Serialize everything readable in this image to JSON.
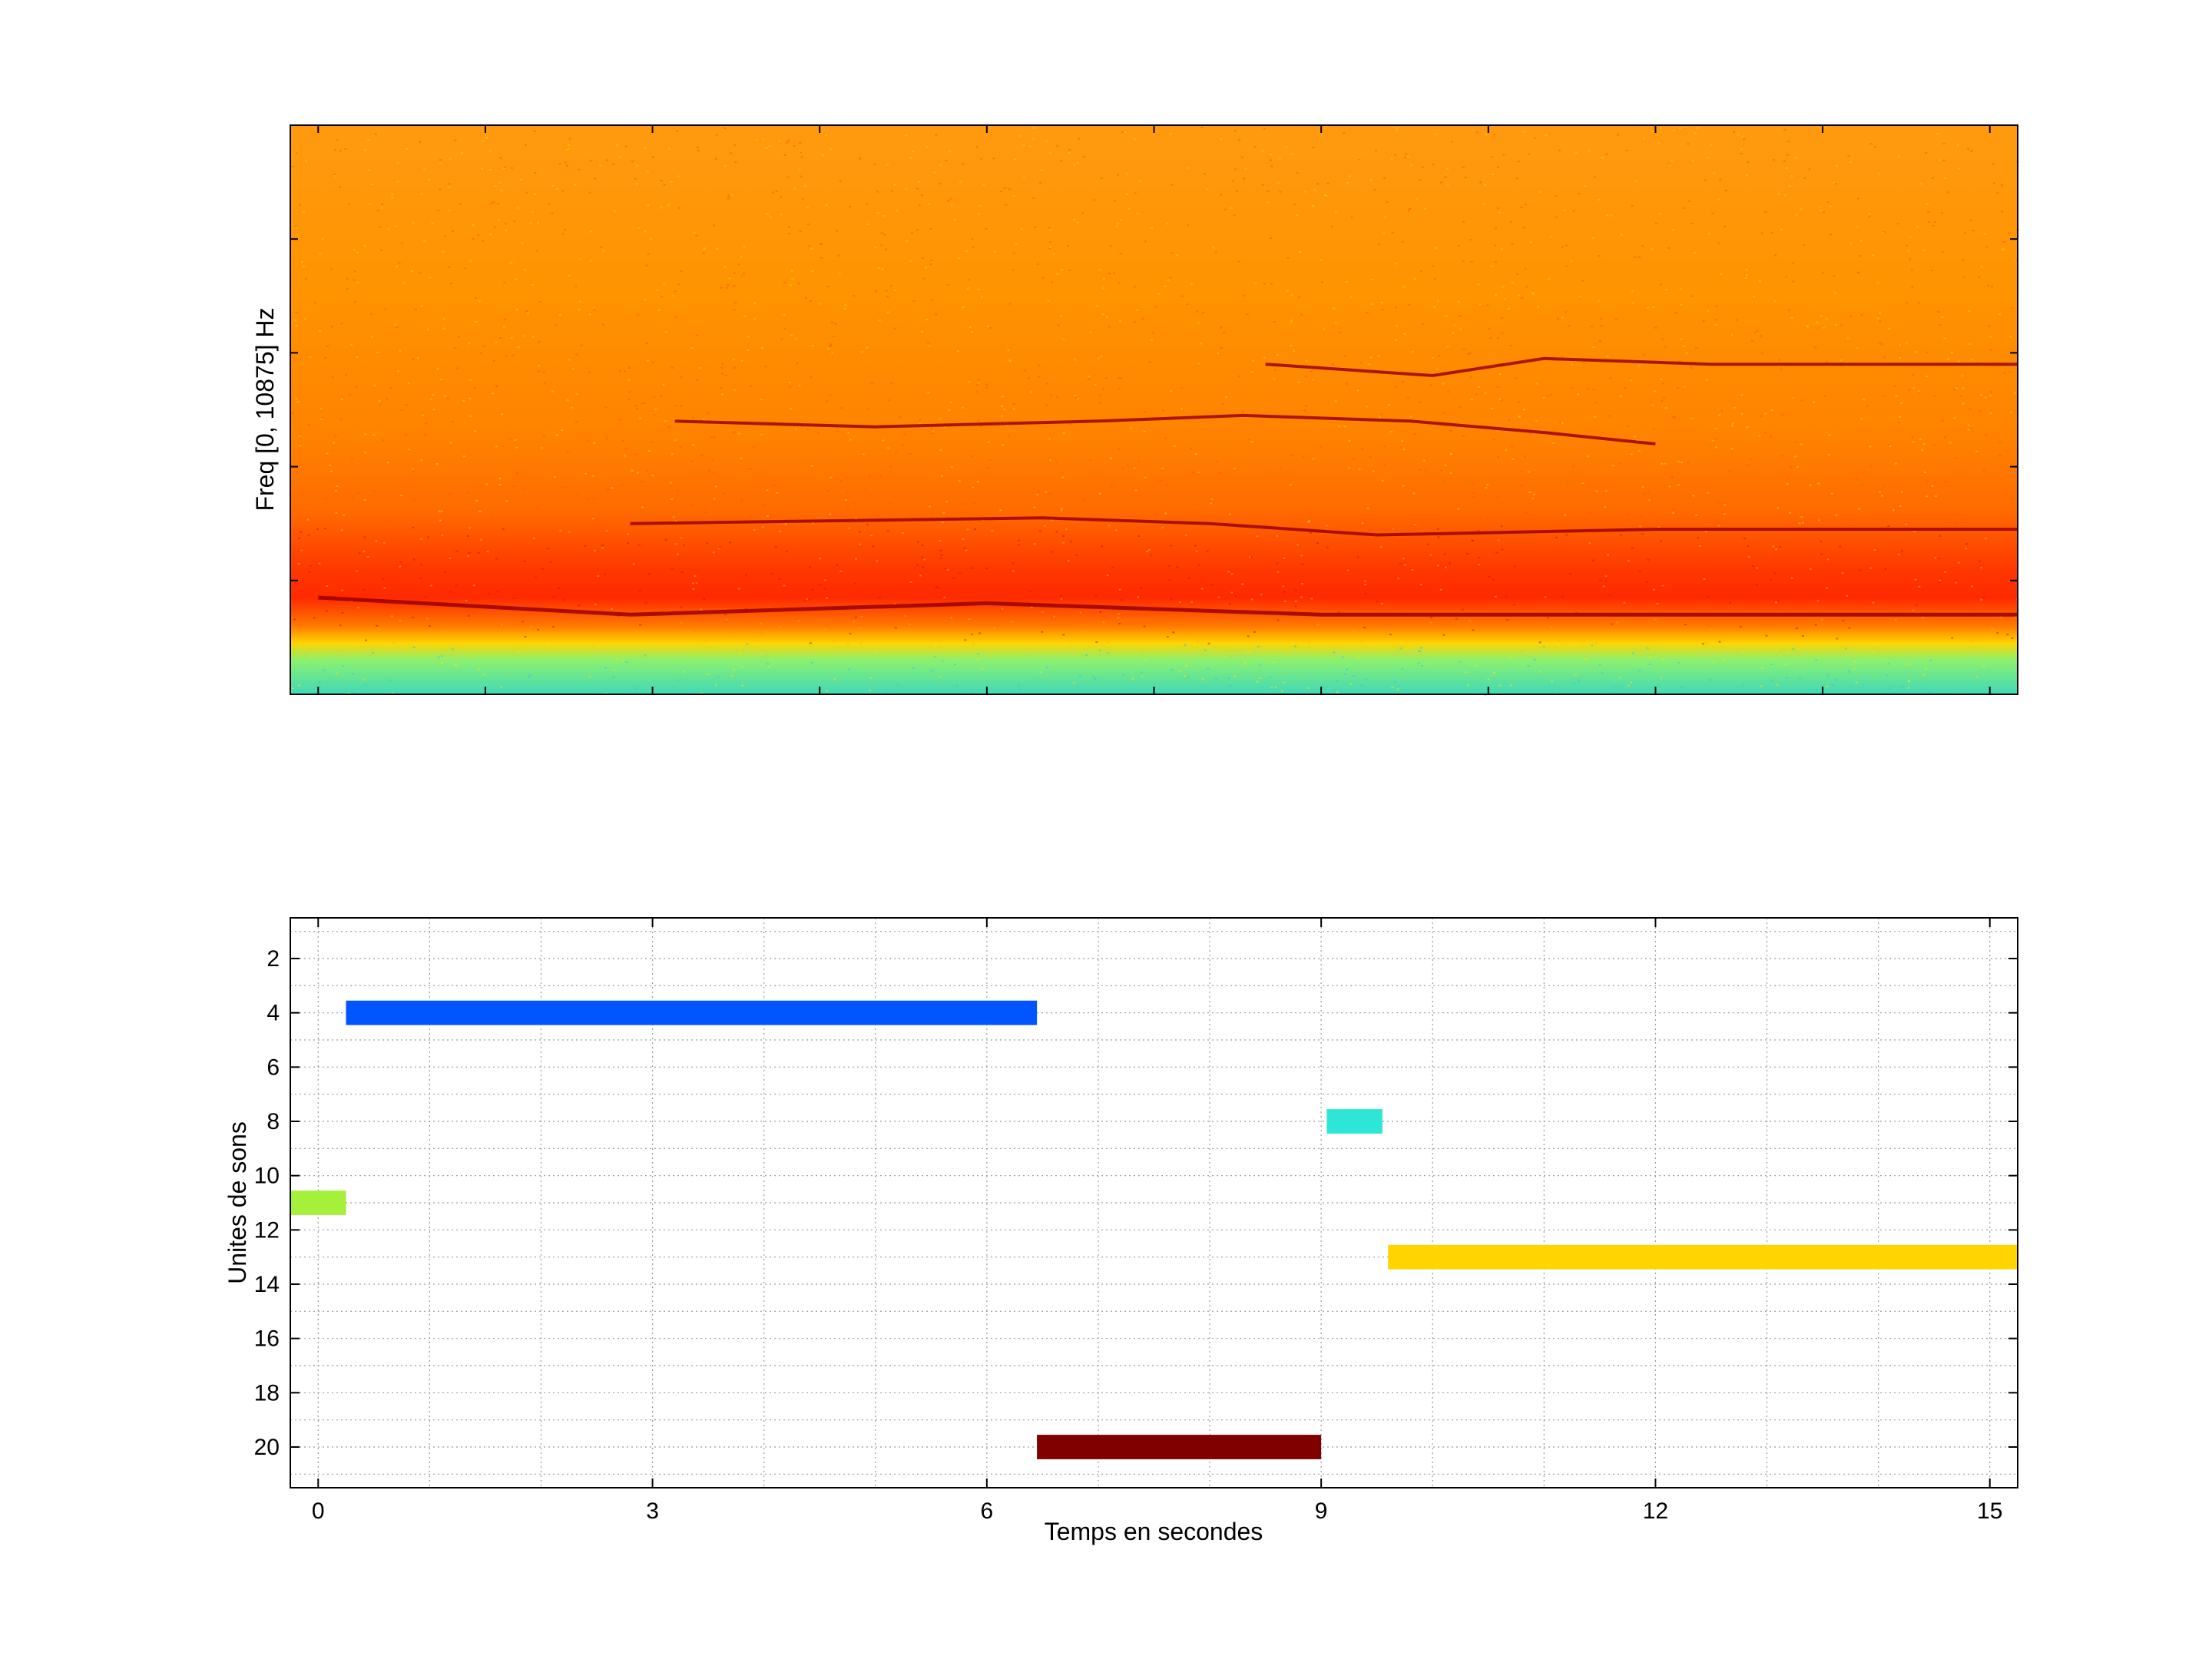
{
  "chart_data": [
    {
      "type": "heatmap",
      "title": "",
      "xlabel": "",
      "ylabel": "Freq [0, 10875] Hz",
      "ylim": [
        0,
        10875
      ],
      "xlim": [
        -0.25,
        15.25
      ],
      "colormap": "jet",
      "features": {
        "background_band": {
          "from_fraction": 0.0,
          "to_fraction": 0.09,
          "color": "#4fe6a8"
        },
        "energy_band_center_fraction": 0.19,
        "harmonic_tracks": [
          {
            "name": "",
            "points": [
              [
                0.0,
                0.17
              ],
              [
                2.8,
                0.14
              ],
              [
                6.0,
                0.16
              ],
              [
                9.0,
                0.14
              ],
              [
                15.25,
                0.14
              ]
            ]
          },
          {
            "name": "",
            "points": [
              [
                2.8,
                0.3
              ],
              [
                6.5,
                0.31
              ],
              [
                8.0,
                0.3
              ],
              [
                9.5,
                0.28
              ],
              [
                12.0,
                0.29
              ],
              [
                15.25,
                0.29
              ]
            ]
          },
          {
            "name": "",
            "points": [
              [
                3.2,
                0.48
              ],
              [
                5.0,
                0.47
              ],
              [
                7.0,
                0.48
              ],
              [
                8.3,
                0.49
              ],
              [
                9.8,
                0.48
              ],
              [
                11.0,
                0.46
              ],
              [
                12.0,
                0.44
              ]
            ]
          },
          {
            "name": "",
            "points": [
              [
                8.5,
                0.58
              ],
              [
                10.0,
                0.56
              ],
              [
                11.0,
                0.59
              ],
              [
                12.5,
                0.58
              ],
              [
                15.25,
                0.58
              ]
            ]
          }
        ]
      }
    },
    {
      "type": "gantt",
      "title": "",
      "xlabel": "Temps en secondes",
      "ylabel": "Unites de sons",
      "xlim": [
        -0.25,
        15.25
      ],
      "ylim": [
        21.5,
        0.5
      ],
      "y_reversed": true,
      "x_ticks": [
        0,
        3,
        6,
        9,
        12,
        15
      ],
      "y_ticks": [
        2,
        4,
        6,
        8,
        10,
        12,
        14,
        16,
        18,
        20
      ],
      "grid": true,
      "segments": [
        {
          "unit": 4,
          "start": 0.25,
          "end": 6.45,
          "color": "#0055ff"
        },
        {
          "unit": 8,
          "start": 9.05,
          "end": 9.55,
          "color": "#2ee6d6"
        },
        {
          "unit": 11,
          "start": -0.25,
          "end": 0.25,
          "color": "#a5f03a"
        },
        {
          "unit": 13,
          "start": 9.6,
          "end": 15.25,
          "color": "#ffd400"
        },
        {
          "unit": 20,
          "start": 6.45,
          "end": 9.0,
          "color": "#800000"
        }
      ],
      "bar_thickness_units": 0.9
    }
  ]
}
